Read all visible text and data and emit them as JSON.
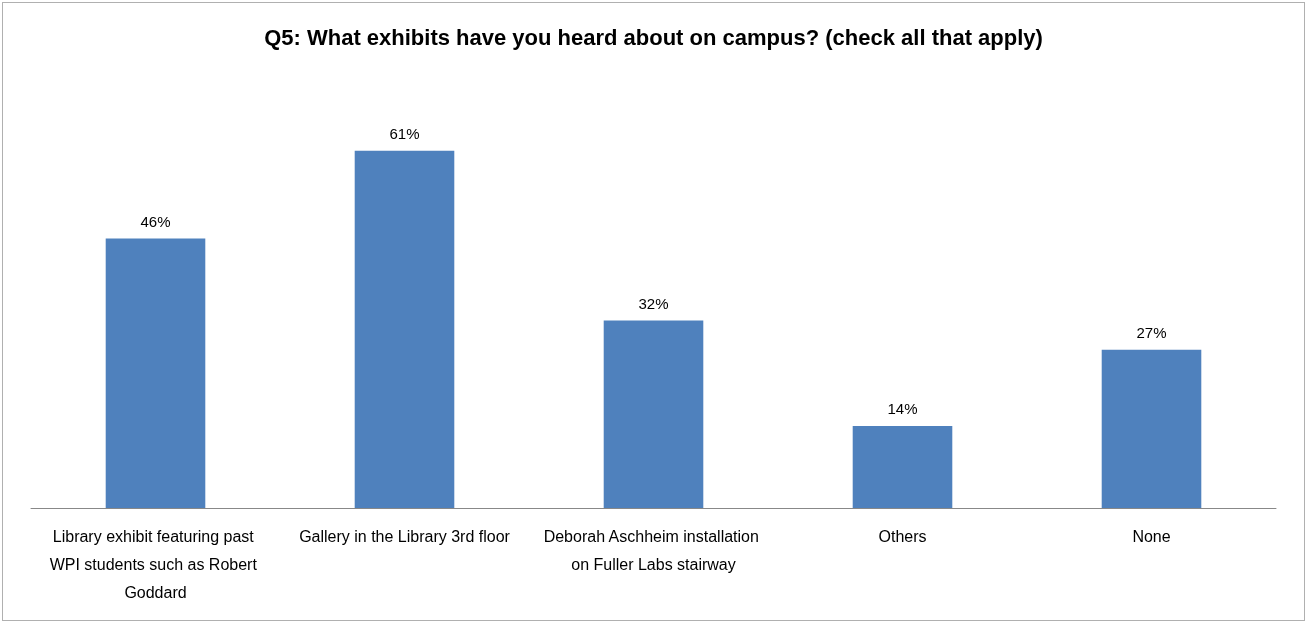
{
  "chart_data": {
    "type": "bar",
    "title": "Q5: What exhibits have you heard about on campus? (check all that apply)",
    "categories": [
      "Library exhibit featuring past WPI students such as Robert Goddard",
      "Gallery in the Library 3rd floor",
      "Deborah Aschheim installation on Fuller Labs stairway",
      "Others",
      "None"
    ],
    "values": [
      46,
      61,
      32,
      14,
      27
    ],
    "value_labels": [
      "46%",
      "61%",
      "32%",
      "14%",
      "27%"
    ],
    "color": "#4f81bd"
  }
}
